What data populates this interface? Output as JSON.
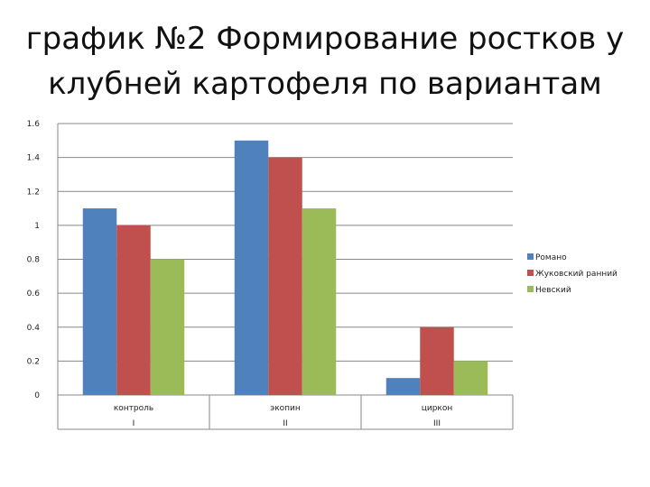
{
  "title": "график  №2 Формирование ростков у\nклубней картофеля по вариантам",
  "chart_data": {
    "type": "bar",
    "title": "график  №2 Формирование ростков у клубней картофеля по вариантам",
    "categories": [
      "контроль",
      "экопин",
      "циркон"
    ],
    "category_groups": [
      "I",
      "II",
      "III"
    ],
    "series": [
      {
        "name": "Романо",
        "color": "#4F81BD",
        "values": [
          1.1,
          1.5,
          0.1
        ]
      },
      {
        "name": "Жуковский ранний",
        "color": "#C0504D",
        "values": [
          1.0,
          1.4,
          0.4
        ]
      },
      {
        "name": "Невский",
        "color": "#9BBB59",
        "values": [
          0.8,
          1.1,
          0.2
        ]
      }
    ],
    "ylim": [
      0,
      1.6
    ],
    "yticks": [
      "0",
      "0.2",
      "0.4",
      "0.6",
      "0.8",
      "1",
      "1.2",
      "1.4",
      "1.6"
    ],
    "grid": true,
    "legend": "right"
  }
}
